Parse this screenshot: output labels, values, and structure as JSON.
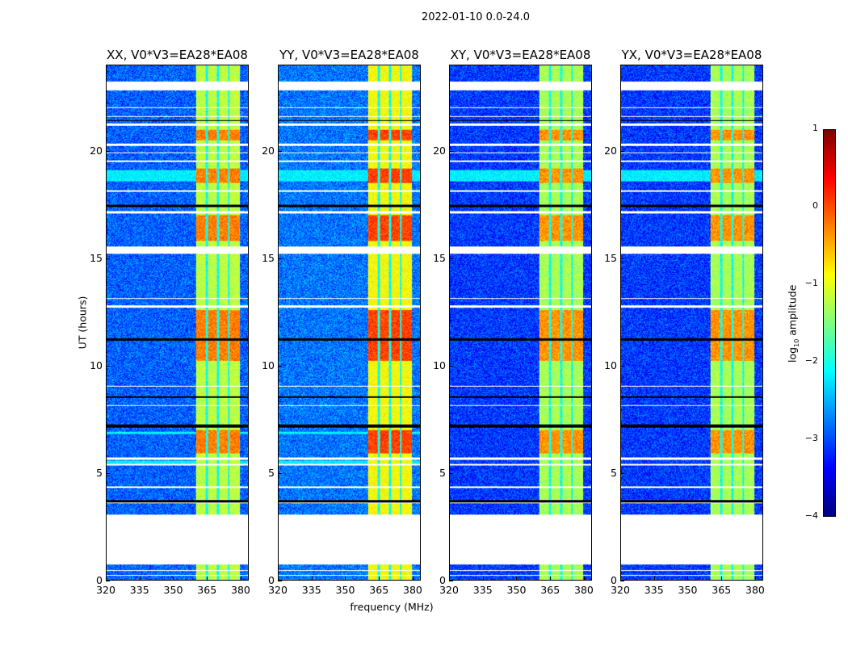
{
  "chart_data": {
    "type": "heatmap",
    "title": "2022-01-10 0.0-24.0",
    "xlabel": "frequency (MHz)",
    "ylabel": "UT (hours)",
    "xlim": [
      320,
      383.6
    ],
    "ylim": [
      0,
      24
    ],
    "xticks": [
      "320",
      "335",
      "350",
      "365",
      "380"
    ],
    "xtick_values": [
      320,
      335,
      350,
      365,
      380
    ],
    "yticks": [
      "0",
      "5",
      "10",
      "15",
      "20"
    ],
    "ytick_values": [
      0,
      5,
      10,
      15,
      20
    ],
    "panels": [
      {
        "title": "XX, V0*V3=EA28*EA08",
        "background_log_amp": -2.9,
        "band_log_amp": -1.2
      },
      {
        "title": "YY, V0*V3=EA28*EA08",
        "background_log_amp": -2.8,
        "band_log_amp": -0.9
      },
      {
        "title": "XY, V0*V3=EA28*EA08",
        "background_log_amp": -3.1,
        "band_log_amp": -1.3
      },
      {
        "title": "YX, V0*V3=EA28*EA08",
        "background_log_amp": -3.1,
        "band_log_amp": -1.3
      }
    ],
    "bright_band_mhz": [
      360.3,
      380
    ],
    "band_gaps_mhz": [
      365,
      370,
      375
    ],
    "bright_band_hot_hours": [
      [
        10.2,
        12.6
      ],
      [
        15.8,
        17.0
      ],
      [
        18.5,
        19.2
      ],
      [
        20.5,
        21.0
      ],
      [
        5.9,
        7.0
      ]
    ],
    "flagged_hours": [
      [
        0.7,
        3.05
      ],
      [
        22.85,
        23.25
      ],
      [
        0.18,
        0.24
      ],
      [
        0.4,
        0.46
      ],
      [
        3.55,
        3.62
      ],
      [
        4.3,
        4.36
      ],
      [
        5.35,
        5.4
      ],
      [
        5.6,
        5.7
      ],
      [
        8.1,
        8.15
      ],
      [
        9.0,
        9.05
      ],
      [
        12.7,
        12.8
      ],
      [
        13.1,
        13.15
      ],
      [
        15.2,
        15.55
      ],
      [
        17.1,
        17.2
      ],
      [
        18.1,
        18.18
      ],
      [
        19.5,
        19.55
      ],
      [
        19.9,
        19.95
      ],
      [
        20.25,
        20.35
      ],
      [
        21.2,
        21.3
      ],
      [
        21.6,
        21.65
      ],
      [
        22.0,
        22.05
      ]
    ],
    "dark_hours": [
      [
        3.62,
        3.7
      ],
      [
        7.1,
        7.25
      ],
      [
        11.15,
        11.25
      ],
      [
        8.5,
        8.58
      ],
      [
        17.4,
        17.5
      ],
      [
        21.4,
        21.45
      ]
    ],
    "cyan_rows_hours": [
      [
        18.6,
        19.1
      ],
      [
        5.4,
        5.55
      ],
      [
        6.8,
        6.9
      ]
    ],
    "colorbar": {
      "label": "log10 amplitude",
      "label_main": "log",
      "label_sub": "10",
      "label_rest": " amplitude",
      "range": [
        -4,
        1
      ],
      "colormap": "jet",
      "ticks": [
        "1",
        "0",
        "−1",
        "−2",
        "−3",
        "−4"
      ],
      "tick_values": [
        1,
        0,
        -1,
        -2,
        -3,
        -4
      ]
    }
  }
}
